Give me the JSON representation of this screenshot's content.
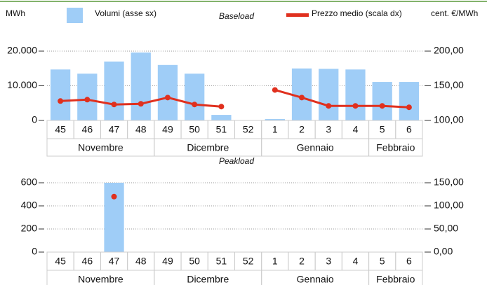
{
  "chart_data": [
    {
      "type": "combo",
      "title": "Baseload",
      "y_label": "MWh",
      "y2_label": "cent. €/MWh",
      "groups": [
        {
          "label": "Novembre",
          "categories": [
            "45",
            "46",
            "47",
            "48"
          ]
        },
        {
          "label": "Dicembre",
          "categories": [
            "49",
            "50",
            "51",
            "52"
          ]
        },
        {
          "label": "Gennaio",
          "categories": [
            "1",
            "2",
            "3",
            "4"
          ]
        },
        {
          "label": "Febbraio",
          "categories": [
            "5",
            "6"
          ]
        }
      ],
      "series": [
        {
          "name": "Volumi (asse sx)",
          "color": "#9fcdf7",
          "kind": "bar",
          "values": [
            14700,
            13500,
            17000,
            19600,
            16000,
            13500,
            1600,
            0,
            400,
            15000,
            14900,
            14700,
            11100,
            11100
          ]
        },
        {
          "name": "Prezzo medio (scala dx)",
          "color": "#e0301e",
          "kind": "line",
          "axis": "y2",
          "values": [
            128,
            130,
            123,
            124,
            133,
            123,
            120,
            null,
            144,
            133,
            121,
            121,
            121,
            119
          ]
        }
      ],
      "ylim": [
        0,
        20000
      ],
      "yticks": [
        0,
        {
          "value": 10000,
          "label": "10.000"
        },
        {
          "value": 20000,
          "label": "20.000"
        }
      ],
      "y2lim": [
        100,
        200
      ],
      "y2ticks": [
        {
          "value": 100,
          "label": "100,00"
        },
        {
          "value": 150,
          "label": "150,00"
        },
        {
          "value": 200,
          "label": "200,00"
        }
      ],
      "grid": true
    },
    {
      "type": "combo",
      "title": "Peakload",
      "groups": [
        {
          "label": "Novembre",
          "categories": [
            "45",
            "46",
            "47",
            "48"
          ]
        },
        {
          "label": "Dicembre",
          "categories": [
            "49",
            "50",
            "51",
            "52"
          ]
        },
        {
          "label": "Gennaio",
          "categories": [
            "1",
            "2",
            "3",
            "4"
          ]
        },
        {
          "label": "Febbraio",
          "categories": [
            "5",
            "6"
          ]
        }
      ],
      "series": [
        {
          "color": "#9fcdf7",
          "kind": "bar",
          "values": [
            null,
            null,
            600,
            null,
            null,
            null,
            null,
            null,
            null,
            null,
            null,
            null,
            null,
            null
          ]
        },
        {
          "color": "#e0301e",
          "kind": "line",
          "axis": "y2",
          "values": [
            null,
            null,
            120,
            null,
            null,
            null,
            null,
            null,
            null,
            null,
            null,
            null,
            null,
            null
          ]
        }
      ],
      "ylim": [
        0,
        600
      ],
      "yticks": [
        0,
        200,
        400,
        600
      ],
      "y2lim": [
        0,
        150
      ],
      "y2ticks": [
        {
          "value": 0,
          "label": "0,00"
        },
        {
          "value": 50,
          "label": "50,00"
        },
        {
          "value": 100,
          "label": "100,00"
        },
        {
          "value": 150,
          "label": "150,00"
        }
      ],
      "grid": true
    }
  ]
}
